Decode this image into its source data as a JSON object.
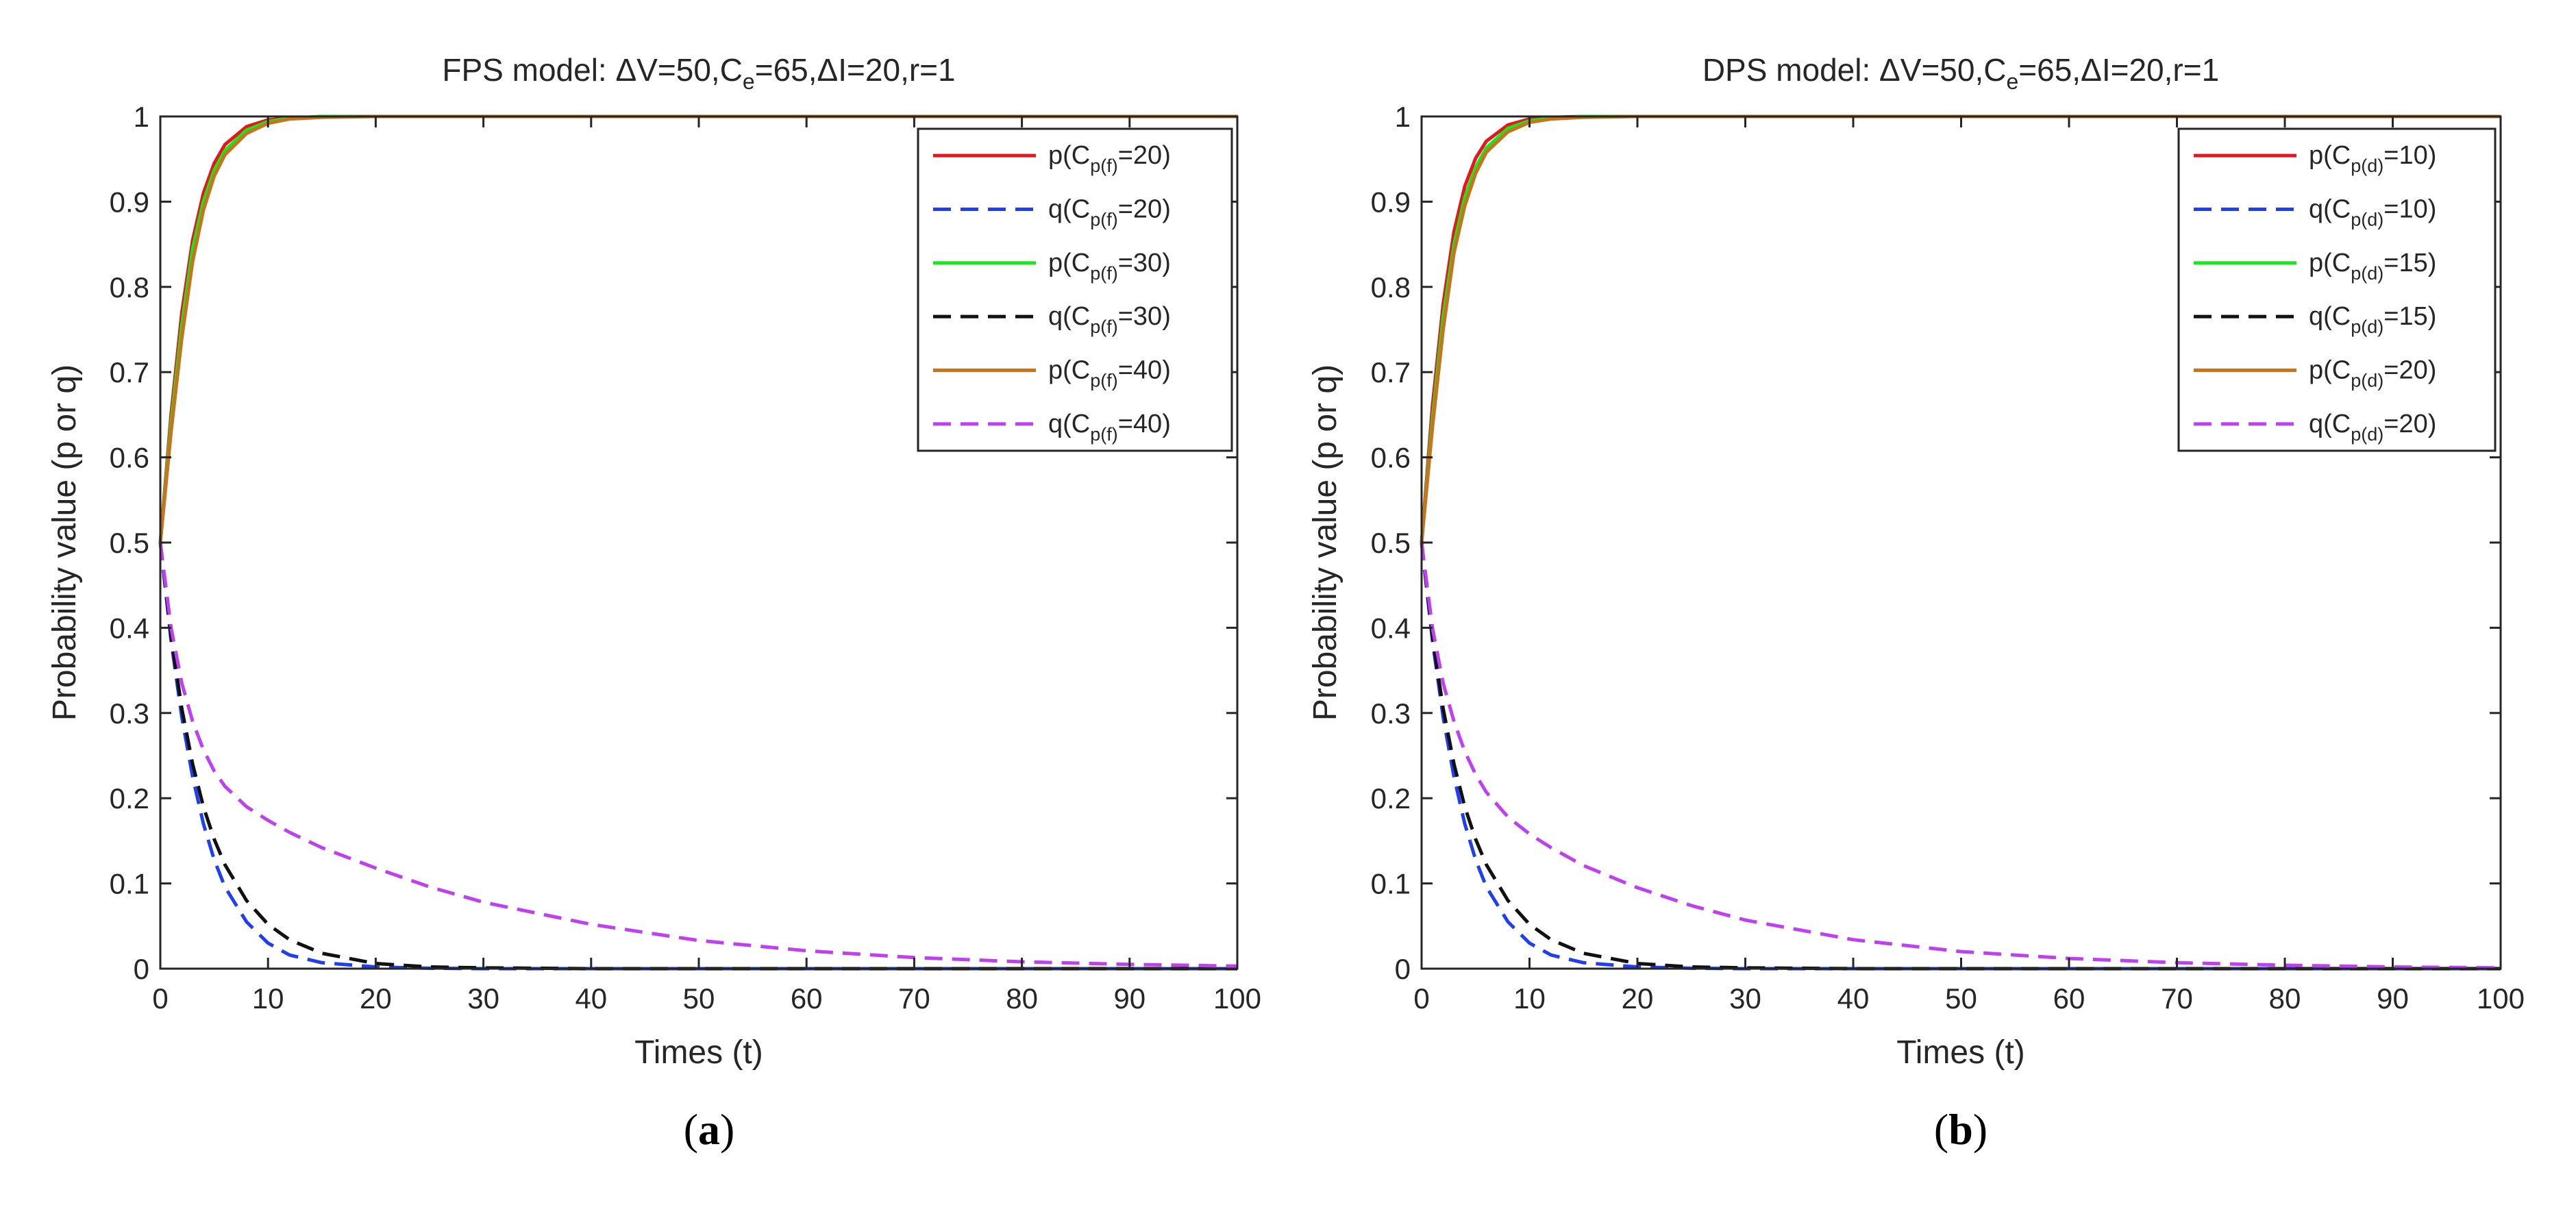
{
  "chart_data": [
    {
      "type": "line",
      "panel_label": "a",
      "title": "FPS model: ΔV=50,Ce=65,ΔI=20,r=1",
      "title_parts": {
        "prefix": "FPS model: ΔV=50,C",
        "sub": "e",
        "suffix": "=65,ΔI=20,r=1"
      },
      "xlabel": "Times (t)",
      "ylabel": "Probability value (p or q)",
      "xlim": [
        0,
        100
      ],
      "ylim": [
        0,
        1
      ],
      "xticks": [
        "0",
        "10",
        "20",
        "30",
        "40",
        "50",
        "60",
        "70",
        "80",
        "90",
        "100"
      ],
      "yticks": [
        "0",
        "0.1",
        "0.2",
        "0.3",
        "0.4",
        "0.5",
        "0.6",
        "0.7",
        "0.8",
        "0.9",
        "1"
      ],
      "grid": false,
      "legend_position": "top-right",
      "sample_t": [
        0,
        1,
        2,
        3,
        4,
        5,
        6,
        8,
        10,
        12,
        15,
        20,
        25,
        30,
        40,
        50,
        60,
        70,
        80,
        90,
        100
      ],
      "series": [
        {
          "name": "p(Cp(f)=20)",
          "legend": {
            "pre": "p(C",
            "sub": "p(f)",
            "post": "=20)"
          },
          "color": "#e8161c",
          "dash": "solid",
          "values": [
            0.5,
            0.65,
            0.77,
            0.855,
            0.91,
            0.945,
            0.967,
            0.988,
            0.996,
            0.998,
            1.0,
            1.0,
            1.0,
            1.0,
            1.0,
            1.0,
            1.0,
            1.0,
            1.0,
            1.0,
            1.0
          ]
        },
        {
          "name": "q(Cp(f)=20)",
          "legend": {
            "pre": "q(C",
            "sub": "p(f)",
            "post": "=20)"
          },
          "color": "#1f3ff0",
          "dash": "dashed",
          "values": [
            0.5,
            0.385,
            0.295,
            0.225,
            0.17,
            0.128,
            0.096,
            0.055,
            0.03,
            0.016,
            0.007,
            0.002,
            0.0005,
            0.0,
            0.0,
            0.0,
            0.0,
            0.0,
            0.0,
            0.0,
            0.0
          ]
        },
        {
          "name": "p(Cp(f)=30)",
          "legend": {
            "pre": "p(C",
            "sub": "p(f)",
            "post": "=30)"
          },
          "color": "#16e81c",
          "dash": "solid",
          "values": [
            0.5,
            0.64,
            0.755,
            0.845,
            0.9,
            0.937,
            0.96,
            0.984,
            0.994,
            0.998,
            1.0,
            1.0,
            1.0,
            1.0,
            1.0,
            1.0,
            1.0,
            1.0,
            1.0,
            1.0,
            1.0
          ]
        },
        {
          "name": "q(Cp(f)=30)",
          "legend": {
            "pre": "q(C",
            "sub": "p(f)",
            "post": "=30)"
          },
          "color": "#111111",
          "dash": "dashed",
          "values": [
            0.5,
            0.39,
            0.305,
            0.24,
            0.19,
            0.152,
            0.122,
            0.08,
            0.052,
            0.034,
            0.018,
            0.006,
            0.002,
            0.001,
            0.0,
            0.0,
            0.0,
            0.0,
            0.0,
            0.0,
            0.0
          ]
        },
        {
          "name": "p(Cp(f)=40)",
          "legend": {
            "pre": "p(C",
            "sub": "p(f)",
            "post": "=40)"
          },
          "color": "#c8741c",
          "dash": "solid",
          "values": [
            0.5,
            0.63,
            0.74,
            0.83,
            0.89,
            0.93,
            0.955,
            0.98,
            0.992,
            0.997,
            0.999,
            1.0,
            1.0,
            1.0,
            1.0,
            1.0,
            1.0,
            1.0,
            1.0,
            1.0,
            1.0
          ]
        },
        {
          "name": "q(Cp(f)=40)",
          "legend": {
            "pre": "q(C",
            "sub": "p(f)",
            "post": "=40)"
          },
          "color": "#bf40f0",
          "dash": "dashed",
          "values": [
            0.5,
            0.4,
            0.335,
            0.29,
            0.257,
            0.232,
            0.214,
            0.19,
            0.174,
            0.16,
            0.142,
            0.118,
            0.096,
            0.078,
            0.052,
            0.033,
            0.021,
            0.013,
            0.008,
            0.005,
            0.003
          ]
        }
      ]
    },
    {
      "type": "line",
      "panel_label": "b",
      "title": "DPS model: ΔV=50,Ce=65,ΔI=20,r=1",
      "title_parts": {
        "prefix": "DPS model: ΔV=50,C",
        "sub": "e",
        "suffix": "=65,ΔI=20,r=1"
      },
      "xlabel": "Times (t)",
      "ylabel": "Probability value (p or q)",
      "xlim": [
        0,
        100
      ],
      "ylim": [
        0,
        1
      ],
      "xticks": [
        "0",
        "10",
        "20",
        "30",
        "40",
        "50",
        "60",
        "70",
        "80",
        "90",
        "100"
      ],
      "yticks": [
        "0",
        "0.1",
        "0.2",
        "0.3",
        "0.4",
        "0.5",
        "0.6",
        "0.7",
        "0.8",
        "0.9",
        "1"
      ],
      "grid": false,
      "legend_position": "top-right",
      "sample_t": [
        0,
        1,
        2,
        3,
        4,
        5,
        6,
        8,
        10,
        12,
        15,
        20,
        25,
        30,
        40,
        50,
        60,
        70,
        80,
        90,
        100
      ],
      "series": [
        {
          "name": "p(Cp(d)=10)",
          "legend": {
            "pre": "p(C",
            "sub": "p(d)",
            "post": "=10)"
          },
          "color": "#e8161c",
          "dash": "solid",
          "values": [
            0.5,
            0.66,
            0.78,
            0.865,
            0.918,
            0.951,
            0.971,
            0.99,
            0.997,
            0.999,
            1.0,
            1.0,
            1.0,
            1.0,
            1.0,
            1.0,
            1.0,
            1.0,
            1.0,
            1.0,
            1.0
          ]
        },
        {
          "name": "q(Cp(d)=10)",
          "legend": {
            "pre": "q(C",
            "sub": "p(d)",
            "post": "=10)"
          },
          "color": "#1f3ff0",
          "dash": "dashed",
          "values": [
            0.5,
            0.385,
            0.295,
            0.225,
            0.17,
            0.128,
            0.096,
            0.055,
            0.03,
            0.016,
            0.007,
            0.002,
            0.0005,
            0.0,
            0.0,
            0.0,
            0.0,
            0.0,
            0.0,
            0.0,
            0.0
          ]
        },
        {
          "name": "p(Cp(d)=15)",
          "legend": {
            "pre": "p(C",
            "sub": "p(d)",
            "post": "=15)"
          },
          "color": "#16e81c",
          "dash": "solid",
          "values": [
            0.5,
            0.645,
            0.765,
            0.85,
            0.905,
            0.94,
            0.963,
            0.986,
            0.995,
            0.998,
            1.0,
            1.0,
            1.0,
            1.0,
            1.0,
            1.0,
            1.0,
            1.0,
            1.0,
            1.0,
            1.0
          ]
        },
        {
          "name": "q(Cp(d)=15)",
          "legend": {
            "pre": "q(C",
            "sub": "p(d)",
            "post": "=15)"
          },
          "color": "#111111",
          "dash": "dashed",
          "values": [
            0.5,
            0.39,
            0.305,
            0.24,
            0.19,
            0.152,
            0.122,
            0.08,
            0.052,
            0.034,
            0.018,
            0.006,
            0.002,
            0.001,
            0.0,
            0.0,
            0.0,
            0.0,
            0.0,
            0.0,
            0.0
          ]
        },
        {
          "name": "p(Cp(d)=20)",
          "legend": {
            "pre": "p(C",
            "sub": "p(d)",
            "post": "=20)"
          },
          "color": "#c8741c",
          "dash": "solid",
          "values": [
            0.5,
            0.635,
            0.75,
            0.84,
            0.895,
            0.933,
            0.958,
            0.982,
            0.993,
            0.997,
            0.999,
            1.0,
            1.0,
            1.0,
            1.0,
            1.0,
            1.0,
            1.0,
            1.0,
            1.0,
            1.0
          ]
        },
        {
          "name": "q(Cp(d)=20)",
          "legend": {
            "pre": "q(C",
            "sub": "p(d)",
            "post": "=20)"
          },
          "color": "#bf40f0",
          "dash": "dashed",
          "values": [
            0.5,
            0.4,
            0.335,
            0.29,
            0.255,
            0.228,
            0.207,
            0.178,
            0.158,
            0.142,
            0.121,
            0.095,
            0.074,
            0.057,
            0.034,
            0.02,
            0.012,
            0.007,
            0.004,
            0.002,
            0.001
          ]
        }
      ]
    }
  ]
}
